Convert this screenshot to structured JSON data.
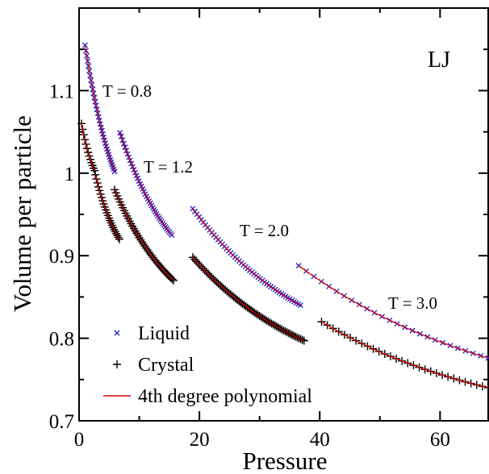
{
  "chart_data": {
    "type": "scatter",
    "title": "",
    "xlabel": "Pressure",
    "ylabel": "Volume per particle",
    "xlim": [
      0,
      68
    ],
    "ylim": [
      0.7,
      1.2
    ],
    "xticks": [
      0,
      20,
      40,
      60
    ],
    "xtick_labels": [
      "0",
      "20",
      "40",
      "60"
    ],
    "yticks": [
      0.7,
      0.8,
      0.9,
      1.0,
      1.1
    ],
    "ytick_labels": [
      "0.7",
      "0.8",
      "0.9",
      "1",
      "1.1"
    ],
    "grid": false,
    "legend_position": "bottom-left",
    "colors": {
      "liquid": "#1c1cc8",
      "crystal": "#000000",
      "polynomial": "#e00000"
    },
    "legend": [
      {
        "label": "Liquid",
        "marker": "x",
        "color_key": "liquid"
      },
      {
        "label": "Crystal",
        "marker": "+",
        "color_key": "crystal"
      },
      {
        "label": "4th degree polynomial",
        "marker": "line",
        "color_key": "polynomial"
      }
    ],
    "annotations": [
      "LJ",
      "T = 0.8",
      "T = 1.2",
      "T = 2.0",
      "T = 3.0"
    ],
    "series": [
      {
        "name": "Liquid",
        "group": "T = 0.8",
        "marker": "x",
        "p_start": 1.0,
        "p_end": 5.9,
        "v_start": 1.155,
        "v_end": 1.002,
        "count": 36
      },
      {
        "name": "Liquid",
        "group": "T = 1.2",
        "marker": "x",
        "p_start": 6.8,
        "p_end": 15.4,
        "v_start": 1.049,
        "v_end": 0.925,
        "count": 42
      },
      {
        "name": "Liquid",
        "group": "T = 2.0",
        "marker": "x",
        "p_start": 18.9,
        "p_end": 36.8,
        "v_start": 0.957,
        "v_end": 0.84,
        "count": 52
      },
      {
        "name": "Liquid",
        "group": "T = 3.0",
        "marker": "x",
        "p_start": 36.5,
        "p_end": 68.0,
        "v_start": 0.888,
        "v_end": 0.776,
        "count": 26
      },
      {
        "name": "Crystal",
        "group": "T = 0.8 (a)",
        "marker": "+",
        "p_start": 0.4,
        "p_end": 2.6,
        "v_start": 1.06,
        "v_end": 1.003,
        "count": 13
      },
      {
        "name": "Crystal",
        "group": "T = 0.8 (b)",
        "marker": "+",
        "p_start": 2.7,
        "p_end": 6.7,
        "v_start": 0.998,
        "v_end": 0.92,
        "count": 24
      },
      {
        "name": "Crystal",
        "group": "T = 1.2",
        "marker": "+",
        "p_start": 5.9,
        "p_end": 15.7,
        "v_start": 0.98,
        "v_end": 0.87,
        "count": 44
      },
      {
        "name": "Crystal",
        "group": "T = 2.0",
        "marker": "+",
        "p_start": 18.9,
        "p_end": 37.4,
        "v_start": 0.898,
        "v_end": 0.797,
        "count": 66
      },
      {
        "name": "Crystal",
        "group": "T = 3.0",
        "marker": "+",
        "p_start": 40.3,
        "p_end": 68.0,
        "v_start": 0.82,
        "v_end": 0.74,
        "count": 30
      }
    ]
  }
}
